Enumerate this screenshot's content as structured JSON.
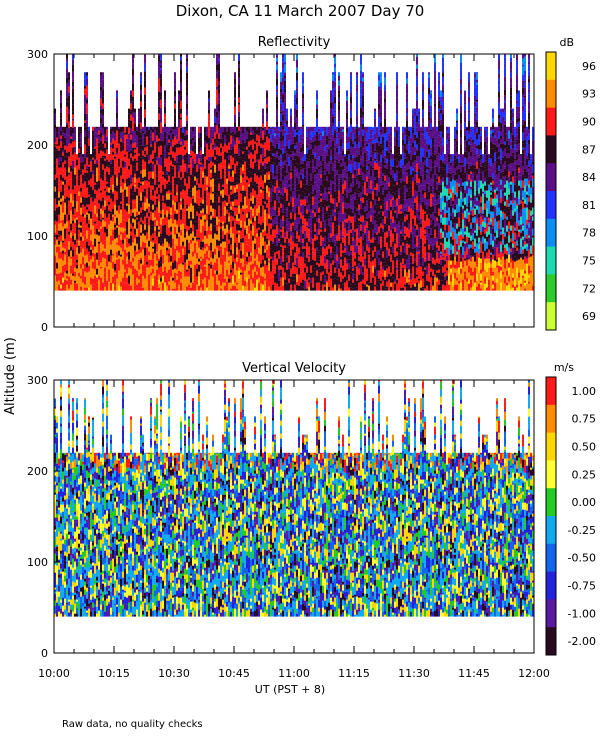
{
  "title": "Dixon, CA 11 March 2007  Day  70",
  "y_axis_label": "Altitude (m)",
  "x_axis_label": "UT   (PST + 8)",
  "footnote": "Raw data, no quality checks",
  "chart_data": [
    {
      "type": "heatmap",
      "title": "Reflectivity",
      "units": "dB",
      "xlabel": "UT   (PST + 8)",
      "ylabel": "Altitude (m)",
      "xlim": [
        "10:00",
        "12:00"
      ],
      "ylim": [
        0,
        300
      ],
      "data_altitude_range": [
        40,
        300
      ],
      "x_ticks": [
        "10:00",
        "10:15",
        "10:30",
        "10:45",
        "11:00",
        "11:15",
        "11:30",
        "11:45",
        "12:00"
      ],
      "y_ticks": [
        0,
        100,
        200,
        300
      ],
      "colorbar": {
        "labels": [
          "96",
          "93",
          "90",
          "87",
          "84",
          "81",
          "78",
          "75",
          "72",
          "69"
        ],
        "colors": [
          "#ffd700",
          "#ff8c00",
          "#ff1a1a",
          "#2a0a1e",
          "#5a0f86",
          "#2233ff",
          "#0a8ef2",
          "#1fd9b0",
          "#2ccc2c",
          "#ccff33"
        ]
      }
    },
    {
      "type": "heatmap",
      "title": "Vertical Velocity",
      "units": "m/s",
      "xlabel": "UT   (PST + 8)",
      "ylabel": "Altitude (m)",
      "xlim": [
        "10:00",
        "12:00"
      ],
      "ylim": [
        0,
        300
      ],
      "data_altitude_range": [
        40,
        300
      ],
      "x_ticks": [
        "10:00",
        "10:15",
        "10:30",
        "10:45",
        "11:00",
        "11:15",
        "11:30",
        "11:45",
        "12:00"
      ],
      "y_ticks": [
        0,
        100,
        200,
        300
      ],
      "colorbar": {
        "labels": [
          "1.00",
          "0.75",
          "0.50",
          "0.25",
          "0.00",
          "-0.25",
          "-0.50",
          "-0.75",
          "-1.00",
          "-2.00"
        ],
        "colors": [
          "#ff1a1a",
          "#ff8c00",
          "#ffd700",
          "#ffff33",
          "#22cc22",
          "#11aaee",
          "#1166ee",
          "#2222dd",
          "#5a1aa0",
          "#2a0a1e"
        ]
      }
    }
  ]
}
